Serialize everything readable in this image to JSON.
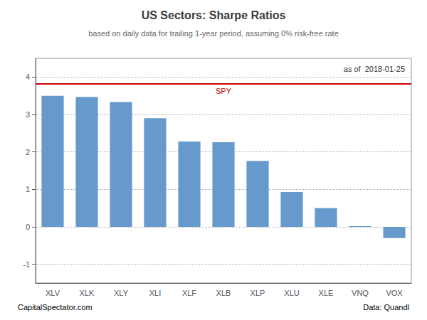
{
  "chart_data": {
    "type": "bar",
    "title": "US Sectors: Sharpe Ratios",
    "subtitle": "based on daily data for trailing 1-year period, assuming 0% risk-free rate",
    "as_of": "as of  2018-01-25",
    "footer_left": "CapitalSpectator.com",
    "footer_right": "Data: Quandl",
    "categories": [
      "XLV",
      "XLK",
      "XLY",
      "XLI",
      "XLF",
      "XLB",
      "XLP",
      "XLU",
      "XLE",
      "VNQ",
      "VOX"
    ],
    "values": [
      3.5,
      3.47,
      3.33,
      2.9,
      2.28,
      2.26,
      1.76,
      0.93,
      0.5,
      0.02,
      -0.3
    ],
    "color": "#6699CC",
    "reference_line": {
      "label": "SPY",
      "value": 3.82,
      "color": "#CC0000"
    },
    "ylim": [
      -1.5,
      4.5
    ],
    "yticks": [
      -1,
      0,
      1,
      2,
      3,
      4
    ],
    "grid": true
  }
}
